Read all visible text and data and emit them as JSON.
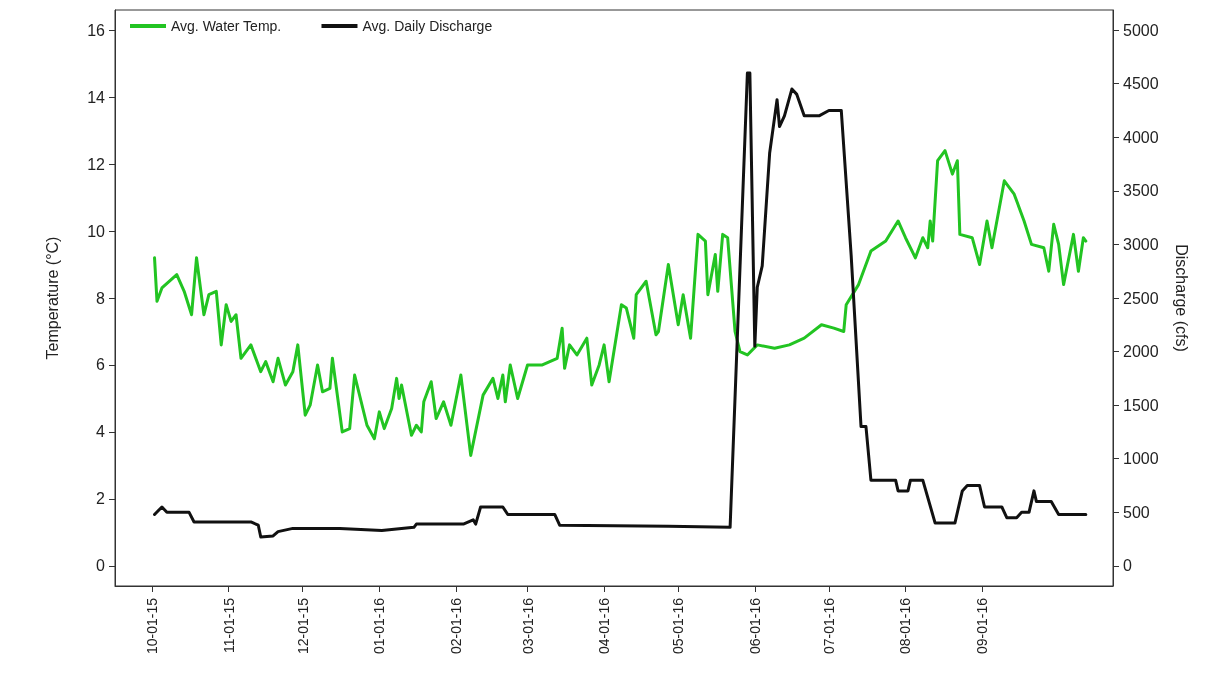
{
  "chart_data": {
    "type": "line",
    "ylabel": "Temperature (°C)",
    "y2label": "Discharge (cfs)",
    "xlim": [
      "2015-09-16",
      "2016-10-24"
    ],
    "xticks": [
      {
        "value": "2015-10-01",
        "label": "10-01-15"
      },
      {
        "value": "2015-11-01",
        "label": "11-01-15"
      },
      {
        "value": "2015-12-01",
        "label": "12-01-15"
      },
      {
        "value": "2016-01-01",
        "label": "01-01-16"
      },
      {
        "value": "2016-02-01",
        "label": "02-01-16"
      },
      {
        "value": "2016-03-01",
        "label": "03-01-16"
      },
      {
        "value": "2016-04-01",
        "label": "04-01-16"
      },
      {
        "value": "2016-05-01",
        "label": "05-01-16"
      },
      {
        "value": "2016-06-01",
        "label": "06-01-16"
      },
      {
        "value": "2016-07-01",
        "label": "07-01-16"
      },
      {
        "value": "2016-08-01",
        "label": "08-01-16"
      },
      {
        "value": "2016-09-01",
        "label": "09-01-16"
      }
    ],
    "ylim": [
      -0.6,
      16.6
    ],
    "yticks": [
      0,
      2,
      4,
      6,
      8,
      10,
      12,
      14,
      16
    ],
    "y2lim": [
      -187.5,
      5187.5
    ],
    "y2ticks": [
      0,
      500,
      1000,
      1500,
      2000,
      2500,
      3000,
      3500,
      4000,
      4500,
      5000
    ],
    "grid": false,
    "legend": "top left",
    "marker": "none",
    "line_style": "solid",
    "series": [
      {
        "name": "Avg. Water Temp.",
        "color": "#22c422",
        "x": [
          "2015-10-02",
          "2015-10-03",
          "2015-10-05",
          "2015-10-11",
          "2015-10-14",
          "2015-10-17",
          "2015-10-19",
          "2015-10-22",
          "2015-10-24",
          "2015-10-27",
          "2015-10-29",
          "2015-10-31",
          "2015-11-02",
          "2015-11-04",
          "2015-11-06",
          "2015-11-10",
          "2015-11-14",
          "2015-11-16",
          "2015-11-19",
          "2015-11-21",
          "2015-11-24",
          "2015-11-27",
          "2015-11-29",
          "2015-12-02",
          "2015-12-04",
          "2015-12-07",
          "2015-12-09",
          "2015-12-12",
          "2015-12-13",
          "2015-12-17",
          "2015-12-20",
          "2015-12-22",
          "2015-12-27",
          "2015-12-30",
          "2016-01-01",
          "2016-01-03",
          "2016-01-06",
          "2016-01-08",
          "2016-01-09",
          "2016-01-10",
          "2016-01-14",
          "2016-01-16",
          "2016-01-18",
          "2016-01-19",
          "2016-01-22",
          "2016-01-24",
          "2016-01-27",
          "2016-01-30",
          "2016-02-03",
          "2016-02-07",
          "2016-02-12",
          "2016-02-16",
          "2016-02-18",
          "2016-02-20",
          "2016-02-21",
          "2016-02-23",
          "2016-02-26",
          "2016-03-01",
          "2016-03-07",
          "2016-03-13",
          "2016-03-15",
          "2016-03-16",
          "2016-03-18",
          "2016-03-21",
          "2016-03-25",
          "2016-03-27",
          "2016-03-30",
          "2016-04-01",
          "2016-04-03",
          "2016-04-08",
          "2016-04-10",
          "2016-04-13",
          "2016-04-14",
          "2016-04-18",
          "2016-04-22",
          "2016-04-23",
          "2016-04-27",
          "2016-05-01",
          "2016-05-03",
          "2016-05-06",
          "2016-05-09",
          "2016-05-12",
          "2016-05-13",
          "2016-05-16",
          "2016-05-17",
          "2016-05-19",
          "2016-05-21",
          "2016-05-24",
          "2016-05-26",
          "2016-05-29",
          "2016-06-02",
          "2016-06-09",
          "2016-06-15",
          "2016-06-21",
          "2016-06-28",
          "2016-07-03",
          "2016-07-07",
          "2016-07-08",
          "2016-07-13",
          "2016-07-18",
          "2016-07-24",
          "2016-07-29",
          "2016-08-01",
          "2016-08-05",
          "2016-08-08",
          "2016-08-10",
          "2016-08-11",
          "2016-08-12",
          "2016-08-14",
          "2016-08-17",
          "2016-08-20",
          "2016-08-22",
          "2016-08-23",
          "2016-08-28",
          "2016-08-31",
          "2016-09-03",
          "2016-09-05",
          "2016-09-10",
          "2016-09-14",
          "2016-09-18",
          "2016-09-21",
          "2016-09-26",
          "2016-09-28",
          "2016-09-30",
          "2016-10-02",
          "2016-10-04",
          "2016-10-08",
          "2016-10-10",
          "2016-10-12",
          "2016-10-13"
        ],
        "values": [
          9.2,
          7.9,
          8.3,
          8.7,
          8.2,
          7.5,
          9.2,
          7.5,
          8.1,
          8.2,
          6.6,
          7.8,
          7.3,
          7.5,
          6.2,
          6.6,
          5.8,
          6.1,
          5.5,
          6.2,
          5.4,
          5.8,
          6.6,
          4.5,
          4.8,
          6.0,
          5.2,
          5.3,
          6.2,
          4.0,
          4.1,
          5.7,
          4.2,
          3.8,
          4.6,
          4.1,
          4.7,
          5.6,
          5.0,
          5.4,
          3.9,
          4.2,
          4.0,
          4.9,
          5.5,
          4.4,
          4.9,
          4.2,
          5.7,
          3.3,
          5.1,
          5.6,
          5.0,
          5.7,
          4.9,
          6.0,
          5.0,
          6.0,
          6.0,
          6.2,
          7.1,
          5.9,
          6.6,
          6.3,
          6.8,
          5.4,
          6.0,
          6.6,
          5.5,
          7.8,
          7.7,
          6.8,
          8.1,
          8.5,
          6.9,
          7.0,
          9.0,
          7.2,
          8.1,
          6.8,
          9.9,
          9.7,
          8.1,
          9.3,
          8.2,
          9.9,
          9.8,
          7.0,
          6.4,
          6.3,
          6.6,
          6.5,
          6.6,
          6.8,
          7.2,
          7.1,
          7.0,
          7.8,
          8.4,
          9.4,
          9.7,
          10.3,
          9.8,
          9.2,
          9.8,
          9.5,
          10.3,
          9.7,
          12.1,
          12.4,
          11.7,
          12.1,
          9.9,
          9.8,
          9.0,
          10.3,
          9.5,
          11.5,
          11.1,
          10.3,
          9.6,
          9.5,
          8.8,
          10.2,
          9.6,
          8.4,
          9.9,
          8.8,
          9.8,
          9.7
        ]
      },
      {
        "name": "Avg. Daily Discharge",
        "color": "#111111",
        "axis": "y2",
        "x": [
          "2015-10-02",
          "2015-10-05",
          "2015-10-07",
          "2015-10-16",
          "2015-10-18",
          "2015-11-10",
          "2015-11-13",
          "2015-11-14",
          "2015-11-19",
          "2015-11-21",
          "2015-11-27",
          "2015-12-16",
          "2016-01-02",
          "2016-01-15",
          "2016-01-16",
          "2016-02-04",
          "2016-02-08",
          "2016-02-09",
          "2016-02-11",
          "2016-02-20",
          "2016-02-22",
          "2016-03-12",
          "2016-03-14",
          "2016-04-27",
          "2016-05-22",
          "2016-05-29",
          "2016-05-30",
          "2016-06-01",
          "2016-06-02",
          "2016-06-04",
          "2016-06-07",
          "2016-06-10",
          "2016-06-11",
          "2016-06-13",
          "2016-06-16",
          "2016-06-18",
          "2016-06-21",
          "2016-06-27",
          "2016-07-01",
          "2016-07-06",
          "2016-07-10",
          "2016-07-14",
          "2016-07-16",
          "2016-07-18",
          "2016-07-28",
          "2016-07-29",
          "2016-08-02",
          "2016-08-03",
          "2016-08-08",
          "2016-08-13",
          "2016-08-21",
          "2016-08-24",
          "2016-08-26",
          "2016-08-31",
          "2016-09-02",
          "2016-09-09",
          "2016-09-11",
          "2016-09-15",
          "2016-09-17",
          "2016-09-20",
          "2016-09-22",
          "2016-09-23",
          "2016-09-29",
          "2016-10-02",
          "2016-10-13"
        ],
        "values": [
          480,
          550,
          500,
          500,
          410,
          410,
          380,
          270,
          280,
          320,
          350,
          350,
          330,
          360,
          390,
          390,
          430,
          390,
          550,
          550,
          480,
          480,
          380,
          370,
          360,
          4600,
          4600,
          2050,
          2600,
          2800,
          3850,
          4350,
          4100,
          4200,
          4450,
          4400,
          4200,
          4200,
          4250,
          4250,
          2900,
          1300,
          1300,
          800,
          800,
          700,
          700,
          800,
          800,
          400,
          400,
          700,
          750,
          750,
          550,
          550,
          450,
          450,
          500,
          500,
          700,
          600,
          600,
          480,
          480
        ]
      }
    ]
  }
}
